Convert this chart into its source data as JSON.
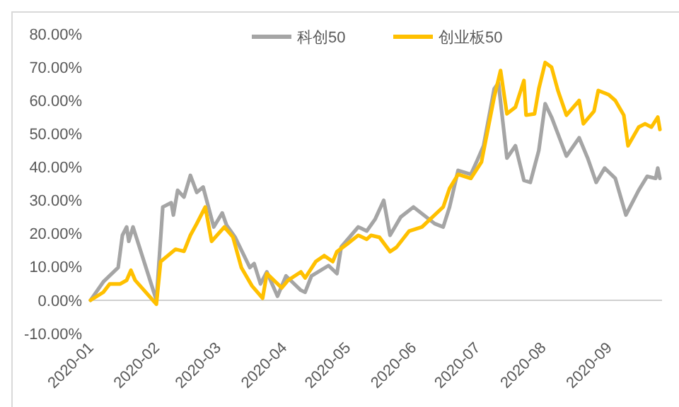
{
  "chart_data": {
    "type": "line",
    "legend": "top",
    "grid": false,
    "xlim": [
      "2020-01-01",
      "2020-09-26"
    ],
    "xticks": [
      {
        "value": "2020-01-01",
        "label": "2020-01"
      },
      {
        "value": "2020-02-01",
        "label": "2020-02"
      },
      {
        "value": "2020-03-01",
        "label": "2020-03"
      },
      {
        "value": "2020-04-01",
        "label": "2020-04"
      },
      {
        "value": "2020-05-01",
        "label": "2020-05"
      },
      {
        "value": "2020-06-01",
        "label": "2020-06"
      },
      {
        "value": "2020-07-01",
        "label": "2020-07"
      },
      {
        "value": "2020-08-01",
        "label": "2020-08"
      },
      {
        "value": "2020-09-01",
        "label": "2020-09"
      }
    ],
    "ylim": [
      -10,
      80
    ],
    "yticks": [
      {
        "value": -10,
        "label": "-10.00%"
      },
      {
        "value": 0,
        "label": "0.00%"
      },
      {
        "value": 10,
        "label": "10.00%"
      },
      {
        "value": 20,
        "label": "20.00%"
      },
      {
        "value": 30,
        "label": "30.00%"
      },
      {
        "value": 40,
        "label": "40.00%"
      },
      {
        "value": 50,
        "label": "50.00%"
      },
      {
        "value": 60,
        "label": "60.00%"
      },
      {
        "value": 70,
        "label": "70.00%"
      },
      {
        "value": 80,
        "label": "80.00%"
      }
    ],
    "series": [
      {
        "name": "科创50",
        "color": "#a5a5a5",
        "x": [
          "2020-01-01",
          "2020-01-07",
          "2020-01-14",
          "2020-01-16",
          "2020-01-18",
          "2020-01-19",
          "2020-01-21",
          "2020-02-01",
          "2020-02-04",
          "2020-02-08",
          "2020-02-09",
          "2020-02-11",
          "2020-02-14",
          "2020-02-17",
          "2020-02-20",
          "2020-02-23",
          "2020-02-28",
          "2020-03-03",
          "2020-03-05",
          "2020-03-09",
          "2020-03-16",
          "2020-03-18",
          "2020-03-21",
          "2020-03-24",
          "2020-03-29",
          "2020-04-02",
          "2020-04-09",
          "2020-04-11",
          "2020-04-14",
          "2020-04-22",
          "2020-04-26",
          "2020-04-28",
          "2020-05-06",
          "2020-05-10",
          "2020-05-14",
          "2020-05-18",
          "2020-05-21",
          "2020-05-26",
          "2020-06-01",
          "2020-06-11",
          "2020-06-15",
          "2020-06-18",
          "2020-06-22",
          "2020-06-28",
          "2020-07-01",
          "2020-07-04",
          "2020-07-09",
          "2020-07-11",
          "2020-07-15",
          "2020-07-19",
          "2020-07-23",
          "2020-07-26",
          "2020-07-30",
          "2020-08-02",
          "2020-08-05",
          "2020-08-08",
          "2020-08-12",
          "2020-08-18",
          "2020-08-22",
          "2020-08-26",
          "2020-08-30",
          "2020-09-04",
          "2020-09-09",
          "2020-09-15",
          "2020-09-19",
          "2020-09-23",
          "2020-09-24",
          "2020-09-25"
        ],
        "values": [
          0,
          5.5,
          9.8,
          19.5,
          22,
          17.7,
          22,
          0,
          28,
          29.3,
          25.6,
          33,
          31,
          37.5,
          32.4,
          34,
          22,
          26.2,
          22.6,
          19,
          9.8,
          11,
          4.9,
          8.5,
          1.2,
          7.3,
          3,
          2.4,
          7.3,
          10.4,
          8,
          16,
          22,
          20.8,
          24.4,
          30,
          19.5,
          25,
          28,
          23,
          22,
          28,
          39,
          37.8,
          42,
          46.4,
          63.5,
          65.3,
          42.7,
          46.4,
          36,
          35.4,
          45,
          59,
          55,
          50,
          43.3,
          48.8,
          42.7,
          35.4,
          39.7,
          36.6,
          25.6,
          33,
          37.2,
          36.6,
          39.7,
          36.6
        ]
      },
      {
        "name": "创业板50",
        "color": "#ffc000",
        "x": [
          "2020-01-01",
          "2020-01-07",
          "2020-01-10",
          "2020-01-15",
          "2020-01-18",
          "2020-01-20",
          "2020-01-22",
          "2020-02-01",
          "2020-02-03",
          "2020-02-10",
          "2020-02-14",
          "2020-02-17",
          "2020-02-20",
          "2020-02-24",
          "2020-02-27",
          "2020-03-04",
          "2020-03-08",
          "2020-03-12",
          "2020-03-17",
          "2020-03-22",
          "2020-03-24",
          "2020-03-31",
          "2020-04-03",
          "2020-04-09",
          "2020-04-11",
          "2020-04-16",
          "2020-04-20",
          "2020-04-24",
          "2020-04-26",
          "2020-05-01",
          "2020-05-06",
          "2020-05-10",
          "2020-05-12",
          "2020-05-16",
          "2020-05-21",
          "2020-05-24",
          "2020-05-30",
          "2020-06-05",
          "2020-06-09",
          "2020-06-15",
          "2020-06-18",
          "2020-06-22",
          "2020-06-28",
          "2020-07-03",
          "2020-07-09",
          "2020-07-12",
          "2020-07-15",
          "2020-07-19",
          "2020-07-23",
          "2020-07-24",
          "2020-07-28",
          "2020-07-30",
          "2020-08-02",
          "2020-08-05",
          "2020-08-08",
          "2020-08-12",
          "2020-08-18",
          "2020-08-20",
          "2020-08-25",
          "2020-08-27",
          "2020-09-01",
          "2020-09-04",
          "2020-09-08",
          "2020-09-10",
          "2020-09-15",
          "2020-09-18",
          "2020-09-21",
          "2020-09-24",
          "2020-09-25"
        ],
        "values": [
          0,
          2.4,
          4.9,
          4.9,
          6,
          9,
          6,
          -1.2,
          11.6,
          15.3,
          14.7,
          19.5,
          23,
          28,
          17.7,
          22,
          19,
          9.8,
          4.3,
          0.6,
          8,
          3.7,
          6,
          8.5,
          6.7,
          11.6,
          13.4,
          11.6,
          14.6,
          17,
          19.5,
          18.3,
          19.5,
          18.9,
          14.6,
          15.9,
          20.8,
          22,
          24.4,
          28,
          33.6,
          37.8,
          36.6,
          41.5,
          61,
          69,
          56,
          58,
          66,
          55.6,
          56,
          63.5,
          71.4,
          70,
          63,
          55.6,
          60,
          53,
          56.8,
          63,
          61.7,
          60,
          55.6,
          46.4,
          52,
          53,
          52,
          55,
          51.3
        ]
      }
    ]
  }
}
